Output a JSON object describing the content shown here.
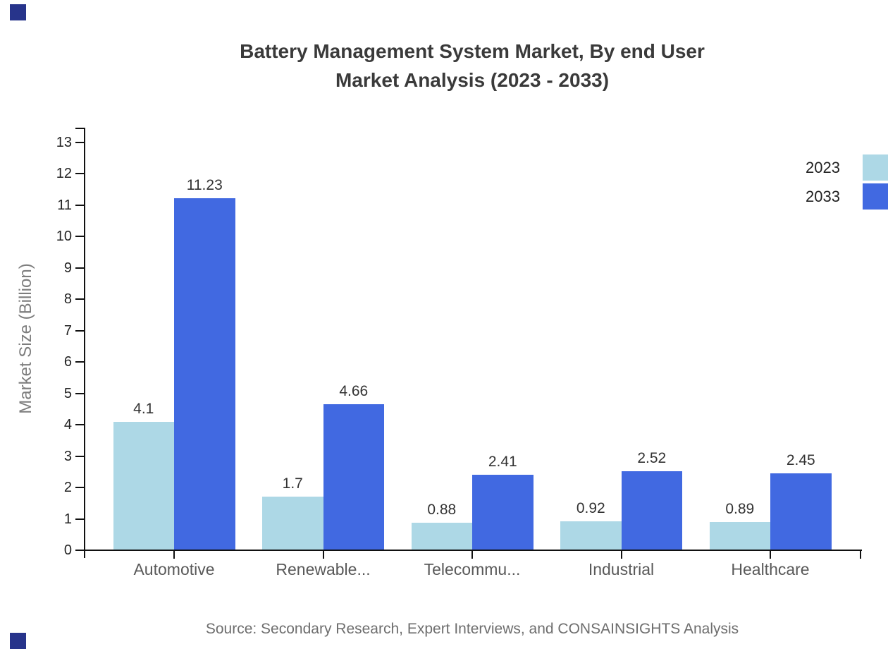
{
  "title": {
    "line1": "Battery Management System Market, By end User",
    "line2": "Market Analysis (2023 - 2033)"
  },
  "source": "Source: Secondary Research, Expert Interviews, and CONSAINSIGHTS Analysis",
  "legend": {
    "items": [
      {
        "label": "2023",
        "color": "#ADD8E6"
      },
      {
        "label": "2033",
        "color": "#4169E1"
      }
    ]
  },
  "accents": {
    "corner_color": "#27348B",
    "axis_color": "#111111"
  },
  "chart_data": {
    "type": "bar",
    "title": "Battery Management System Market, By end User Market Analysis (2023 - 2033)",
    "xlabel": "",
    "ylabel": "Market Size (Billion)",
    "categories": [
      "Automotive",
      "Renewable...",
      "Telecommu...",
      "Industrial",
      "Healthcare"
    ],
    "series": [
      {
        "name": "2023",
        "color": "#ADD8E6",
        "values": [
          4.1,
          1.7,
          0.88,
          0.92,
          0.89
        ],
        "labels": [
          "4.1",
          "1.7",
          "0.88",
          "0.92",
          "0.89"
        ]
      },
      {
        "name": "2033",
        "color": "#4169E1",
        "values": [
          11.23,
          4.66,
          2.41,
          2.52,
          2.45
        ],
        "labels": [
          "11.23",
          "4.66",
          "2.41",
          "2.52",
          "2.45"
        ]
      }
    ],
    "ylim": [
      0,
      13
    ],
    "yticks": [
      0,
      1,
      2,
      3,
      4,
      5,
      6,
      7,
      8,
      9,
      10,
      11,
      12,
      13
    ],
    "grid": false,
    "legend_position": "top-right"
  }
}
